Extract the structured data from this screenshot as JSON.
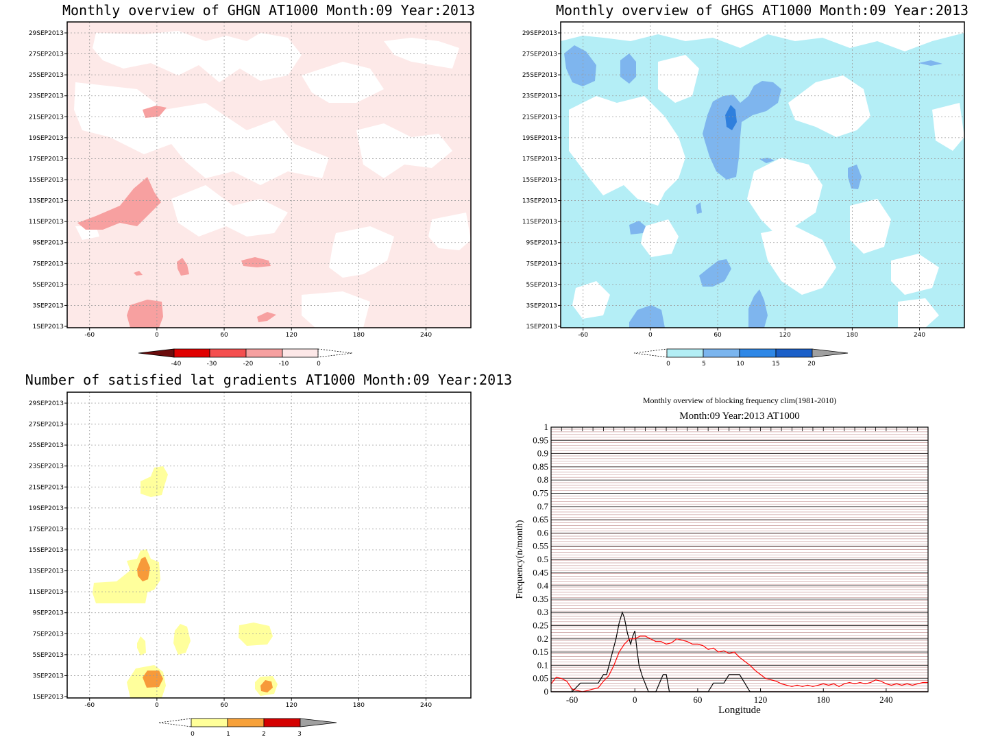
{
  "chart_data": [
    {
      "type": "heatmap",
      "title": "Monthly overview of GHGN AT1000 Month:09 Year:2013",
      "x_ticks": [
        "-60",
        "0",
        "60",
        "120",
        "180",
        "240"
      ],
      "x_tick_values": [
        -60,
        0,
        60,
        120,
        180,
        240
      ],
      "xlim": [
        -80,
        280
      ],
      "y_ticks": [
        "1SEP2013",
        "3SEP2013",
        "5SEP2013",
        "7SEP2013",
        "9SEP2013",
        "11SEP2013",
        "13SEP2013",
        "15SEP2013",
        "17SEP2013",
        "19SEP2013",
        "21SEP2013",
        "23SEP2013",
        "25SEP2013",
        "27SEP2013",
        "29SEP2013"
      ],
      "grid": true,
      "colorbar": {
        "labels": [
          "-40",
          "-30",
          "-20",
          "-10",
          "0"
        ],
        "colors": [
          "#e00000",
          "#f44f4f",
          "#f6a0a0",
          "#fde8e8"
        ],
        "low_end": "#6b0c0c",
        "high_end": "none"
      },
      "colors": {
        "background": "#fde9e8",
        "light": "#ffffff",
        "patch": "#f7a0a0"
      }
    },
    {
      "type": "heatmap",
      "title": "Monthly overview of GHGS AT1000 Month:09 Year:2013",
      "x_ticks": [
        "-60",
        "0",
        "60",
        "120",
        "180",
        "240"
      ],
      "x_tick_values": [
        -60,
        0,
        60,
        120,
        180,
        240
      ],
      "xlim": [
        -80,
        280
      ],
      "y_ticks": [
        "1SEP2013",
        "3SEP2013",
        "5SEP2013",
        "7SEP2013",
        "9SEP2013",
        "11SEP2013",
        "13SEP2013",
        "15SEP2013",
        "17SEP2013",
        "19SEP2013",
        "21SEP2013",
        "23SEP2013",
        "25SEP2013",
        "27SEP2013",
        "29SEP2013"
      ],
      "grid": true,
      "colorbar": {
        "labels": [
          "0",
          "5",
          "10",
          "15",
          "20"
        ],
        "colors": [
          "#b3eef5",
          "#7bb5ee",
          "#2e87e6",
          "#1a5fc8"
        ],
        "low_end": "none",
        "high_end": "#a0a0a0"
      },
      "colors": {
        "background": "#b4eef6",
        "light": "#ffffff",
        "mid": "#7eb5ee",
        "dark": "#2f7fdd"
      }
    },
    {
      "type": "heatmap",
      "title": "Number of satisfied lat gradients AT1000 Month:09 Year:2013",
      "x_ticks": [
        "-60",
        "0",
        "60",
        "120",
        "180",
        "240"
      ],
      "x_tick_values": [
        -60,
        0,
        60,
        120,
        180,
        240
      ],
      "xlim": [
        -80,
        280
      ],
      "y_ticks": [
        "1SEP2013",
        "3SEP2013",
        "5SEP2013",
        "7SEP2013",
        "9SEP2013",
        "11SEP2013",
        "13SEP2013",
        "15SEP2013",
        "17SEP2013",
        "19SEP2013",
        "21SEP2013",
        "23SEP2013",
        "25SEP2013",
        "27SEP2013",
        "29SEP2013"
      ],
      "grid": true,
      "colorbar": {
        "labels": [
          "0",
          "1",
          "2",
          "3"
        ],
        "colors": [
          "#ffff99",
          "#f7a13a",
          "#d40000"
        ],
        "low_end": "none",
        "high_end": "#a0a0a0"
      },
      "colors": {
        "yellow": "#ffff9c",
        "orange": "#f79a3a"
      }
    },
    {
      "type": "line",
      "title": "Monthly overview of blocking frequency clim(1981-2010)",
      "subtitle": "Month:09 Year:2013  AT1000",
      "xlabel": "Longitude",
      "ylabel": "Frequency(n/month)",
      "xlim": [
        -80,
        280
      ],
      "ylim": [
        0,
        1
      ],
      "x_ticks": [
        "-60",
        "0",
        "60",
        "120",
        "180",
        "240"
      ],
      "x_tick_values": [
        -60,
        0,
        60,
        120,
        180,
        240
      ],
      "y_ticks": [
        "0",
        "0.05",
        "0.1",
        "0.15",
        "0.2",
        "0.25",
        "0.3",
        "0.35",
        "0.4",
        "0.45",
        "0.5",
        "0.55",
        "0.6",
        "0.65",
        "0.7",
        "0.75",
        "0.8",
        "0.85",
        "0.9",
        "0.95",
        "1"
      ],
      "y_tick_values": [
        0,
        0.05,
        0.1,
        0.15,
        0.2,
        0.25,
        0.3,
        0.35,
        0.4,
        0.45,
        0.5,
        0.55,
        0.6,
        0.65,
        0.7,
        0.75,
        0.8,
        0.85,
        0.9,
        0.95,
        1
      ],
      "series": [
        {
          "color": "#000000",
          "x": [
            -80,
            -60,
            -52,
            -35,
            -30,
            -27,
            -22,
            -18,
            -15,
            -12,
            -10,
            -7,
            -4,
            -2,
            0,
            2,
            4,
            7,
            10,
            13,
            17,
            20,
            27,
            30,
            33,
            40,
            70,
            75,
            80,
            85,
            90,
            95,
            100,
            105,
            110,
            130,
            280
          ],
          "y": [
            0,
            0,
            0.033,
            0.033,
            0.065,
            0.065,
            0.14,
            0.2,
            0.26,
            0.3,
            0.28,
            0.22,
            0.18,
            0.21,
            0.23,
            0.16,
            0.1,
            0.06,
            0.03,
            0,
            0,
            0,
            0.065,
            0.065,
            0,
            0,
            0,
            0.033,
            0.033,
            0.033,
            0.065,
            0.065,
            0.065,
            0.033,
            0,
            0,
            0
          ]
        },
        {
          "color": "#ff0000",
          "x": [
            -80,
            -75,
            -70,
            -65,
            -60,
            -55,
            -50,
            -45,
            -40,
            -35,
            -30,
            -25,
            -20,
            -15,
            -10,
            -5,
            0,
            5,
            10,
            15,
            20,
            25,
            30,
            35,
            40,
            45,
            50,
            55,
            60,
            65,
            70,
            75,
            80,
            85,
            90,
            95,
            100,
            105,
            110,
            115,
            120,
            125,
            130,
            135,
            140,
            145,
            150,
            155,
            160,
            165,
            170,
            175,
            180,
            185,
            190,
            195,
            200,
            205,
            210,
            215,
            220,
            225,
            230,
            235,
            240,
            245,
            250,
            255,
            260,
            265,
            270,
            275,
            280
          ],
          "y": [
            0.03,
            0.055,
            0.05,
            0.04,
            0.01,
            0.005,
            0.0,
            0.005,
            0.01,
            0.015,
            0.04,
            0.06,
            0.1,
            0.15,
            0.18,
            0.2,
            0.2,
            0.21,
            0.21,
            0.2,
            0.19,
            0.19,
            0.18,
            0.185,
            0.2,
            0.195,
            0.19,
            0.18,
            0.18,
            0.175,
            0.16,
            0.165,
            0.15,
            0.155,
            0.145,
            0.15,
            0.13,
            0.115,
            0.1,
            0.08,
            0.065,
            0.05,
            0.045,
            0.04,
            0.03,
            0.025,
            0.02,
            0.025,
            0.02,
            0.025,
            0.02,
            0.025,
            0.03,
            0.025,
            0.03,
            0.02,
            0.03,
            0.035,
            0.03,
            0.035,
            0.03,
            0.035,
            0.045,
            0.04,
            0.03,
            0.025,
            0.03,
            0.025,
            0.03,
            0.025,
            0.03,
            0.035,
            0.035
          ]
        }
      ],
      "colors": {
        "hlines": "#c99a9a"
      }
    }
  ]
}
